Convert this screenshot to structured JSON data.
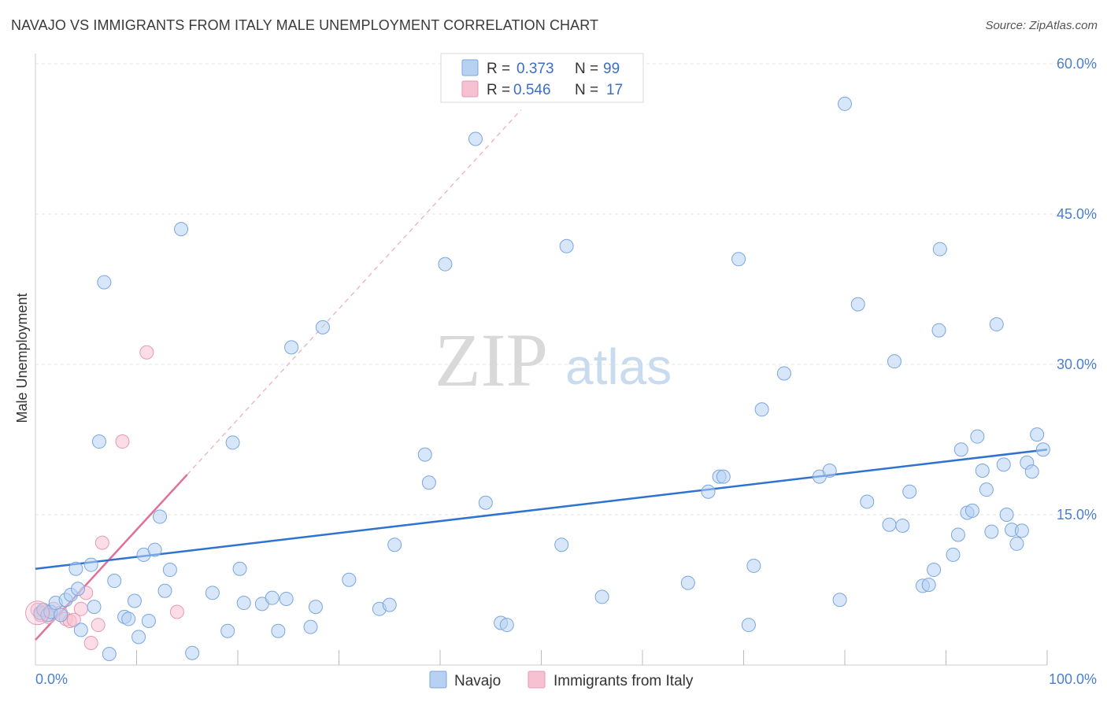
{
  "title": "NAVAJO VS IMMIGRANTS FROM ITALY MALE UNEMPLOYMENT CORRELATION CHART",
  "source": "Source: ZipAtlas.com",
  "watermark": {
    "zip": "ZIP",
    "atlas": "atlas"
  },
  "colors": {
    "navajo_fill": "#b7d1f2",
    "navajo_stroke": "#7aa6df",
    "navajo_line": "#2f73d0",
    "italy_fill": "#f6c1d1",
    "italy_stroke": "#e898b2",
    "italy_line": "#e0709a",
    "grid": "#e6e6e6",
    "tick_label": "#4a7fcf"
  },
  "legend": {
    "rows": [
      {
        "r_label": "R =",
        "r_value": "0.373",
        "n_label": "N =",
        "n_value": "99"
      },
      {
        "r_label": "R =",
        "r_value": "0.546",
        "n_label": "N =",
        "n_value": "17"
      }
    ]
  },
  "bottom_legend": {
    "navajo": "Navajo",
    "italy": "Immigrants from Italy"
  },
  "chart_data": {
    "type": "scatter",
    "title": "NAVAJO VS IMMIGRANTS FROM ITALY MALE UNEMPLOYMENT CORRELATION CHART",
    "xlabel": "",
    "ylabel": "Male Unemployment",
    "xlim": [
      0,
      100
    ],
    "ylim": [
      0,
      60
    ],
    "x_tick_labels": [
      "0.0%",
      "100.0%"
    ],
    "y_ticks": [
      15,
      30,
      45,
      60
    ],
    "y_tick_labels": [
      "15.0%",
      "30.0%",
      "45.0%",
      "60.0%"
    ],
    "x_grid_ticks": [
      10,
      20,
      30,
      40,
      50,
      60,
      70,
      80,
      90,
      100
    ],
    "series": [
      {
        "name": "Navajo",
        "R": 0.373,
        "N": 99,
        "trend": {
          "x0": 0,
          "y0": 9.6,
          "x1": 100,
          "y1": 21.5
        },
        "points": [
          [
            0.5,
            5.2
          ],
          [
            0.8,
            5.5
          ],
          [
            1.2,
            5.0
          ],
          [
            1.5,
            5.3
          ],
          [
            2.0,
            6.2
          ],
          [
            2.5,
            5.0
          ],
          [
            3.0,
            6.5
          ],
          [
            3.5,
            7.0
          ],
          [
            4.0,
            9.6
          ],
          [
            4.2,
            7.6
          ],
          [
            4.5,
            3.5
          ],
          [
            5.5,
            10.0
          ],
          [
            5.8,
            5.8
          ],
          [
            6.3,
            22.3
          ],
          [
            6.8,
            38.2
          ],
          [
            7.3,
            1.1
          ],
          [
            7.8,
            8.4
          ],
          [
            8.8,
            4.8
          ],
          [
            9.2,
            4.6
          ],
          [
            9.8,
            6.4
          ],
          [
            10.2,
            2.8
          ],
          [
            10.7,
            11.0
          ],
          [
            11.2,
            4.4
          ],
          [
            11.8,
            11.5
          ],
          [
            12.3,
            14.8
          ],
          [
            12.8,
            7.4
          ],
          [
            13.3,
            9.5
          ],
          [
            14.4,
            43.5
          ],
          [
            15.5,
            1.2
          ],
          [
            17.5,
            7.2
          ],
          [
            19.0,
            3.4
          ],
          [
            19.5,
            22.2
          ],
          [
            20.2,
            9.6
          ],
          [
            20.6,
            6.2
          ],
          [
            22.4,
            6.1
          ],
          [
            23.4,
            6.7
          ],
          [
            24.0,
            3.4
          ],
          [
            24.8,
            6.6
          ],
          [
            25.3,
            31.7
          ],
          [
            27.2,
            3.8
          ],
          [
            27.7,
            5.8
          ],
          [
            28.4,
            33.7
          ],
          [
            31.0,
            8.5
          ],
          [
            34.0,
            5.6
          ],
          [
            35.0,
            6.0
          ],
          [
            35.5,
            12.0
          ],
          [
            38.5,
            21.0
          ],
          [
            38.9,
            18.2
          ],
          [
            40.5,
            40.0
          ],
          [
            43.5,
            52.5
          ],
          [
            44.5,
            16.2
          ],
          [
            46.0,
            4.2
          ],
          [
            46.6,
            4.0
          ],
          [
            52.0,
            12.0
          ],
          [
            52.5,
            41.8
          ],
          [
            56.0,
            6.8
          ],
          [
            64.5,
            8.2
          ],
          [
            66.5,
            17.3
          ],
          [
            67.6,
            18.8
          ],
          [
            68.0,
            18.8
          ],
          [
            69.5,
            40.5
          ],
          [
            70.5,
            4.0
          ],
          [
            71.0,
            9.9
          ],
          [
            71.8,
            25.5
          ],
          [
            74.0,
            29.1
          ],
          [
            77.5,
            18.8
          ],
          [
            78.5,
            19.4
          ],
          [
            79.5,
            6.5
          ],
          [
            80.0,
            56.0
          ],
          [
            81.3,
            36.0
          ],
          [
            82.2,
            16.3
          ],
          [
            84.4,
            14.0
          ],
          [
            84.9,
            30.3
          ],
          [
            85.7,
            13.9
          ],
          [
            86.4,
            17.3
          ],
          [
            87.7,
            7.9
          ],
          [
            88.3,
            8.0
          ],
          [
            88.8,
            9.5
          ],
          [
            89.3,
            33.4
          ],
          [
            89.4,
            41.5
          ],
          [
            90.7,
            11.0
          ],
          [
            91.2,
            13.0
          ],
          [
            91.5,
            21.5
          ],
          [
            92.1,
            15.2
          ],
          [
            92.6,
            15.4
          ],
          [
            93.1,
            22.8
          ],
          [
            93.6,
            19.4
          ],
          [
            94.0,
            17.5
          ],
          [
            94.5,
            13.3
          ],
          [
            95.0,
            34.0
          ],
          [
            95.7,
            20.0
          ],
          [
            96.0,
            15.0
          ],
          [
            96.5,
            13.5
          ],
          [
            97.0,
            12.1
          ],
          [
            97.5,
            13.4
          ],
          [
            98.0,
            20.2
          ],
          [
            98.5,
            19.3
          ],
          [
            99.0,
            23.0
          ],
          [
            99.6,
            21.5
          ]
        ]
      },
      {
        "name": "Immigrants from Italy",
        "R": 0.546,
        "N": 17,
        "trend": {
          "x0": 0,
          "y0": 2.5,
          "x1": 15,
          "y1": 19.0
        },
        "trend_extension": {
          "x0": 15,
          "y0": 19.0,
          "x1": 48,
          "y1": 55.4
        },
        "points": [
          [
            0.2,
            5.5
          ],
          [
            0.5,
            5.0
          ],
          [
            1.0,
            5.3
          ],
          [
            1.3,
            4.8
          ],
          [
            1.8,
            5.6
          ],
          [
            2.5,
            5.2
          ],
          [
            3.0,
            4.6
          ],
          [
            3.4,
            4.4
          ],
          [
            3.8,
            4.5
          ],
          [
            4.5,
            5.6
          ],
          [
            5.0,
            7.2
          ],
          [
            5.5,
            2.2
          ],
          [
            6.2,
            4.0
          ],
          [
            6.6,
            12.2
          ],
          [
            8.6,
            22.3
          ],
          [
            11.0,
            31.2
          ],
          [
            14.0,
            5.3
          ]
        ]
      }
    ]
  }
}
